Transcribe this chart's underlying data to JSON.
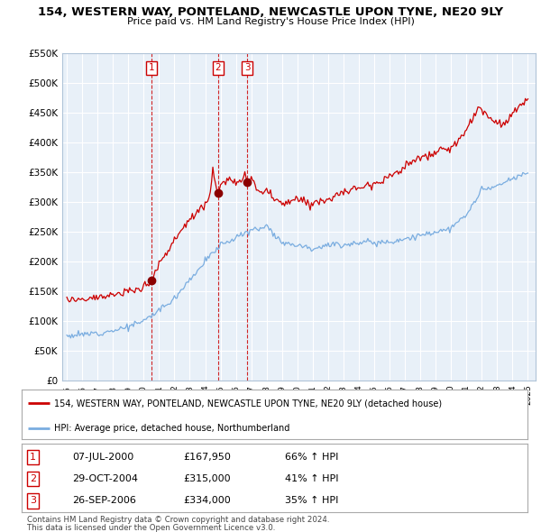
{
  "title1": "154, WESTERN WAY, PONTELAND, NEWCASTLE UPON TYNE, NE20 9LY",
  "title2": "Price paid vs. HM Land Registry's House Price Index (HPI)",
  "legend_line1": "154, WESTERN WAY, PONTELAND, NEWCASTLE UPON TYNE, NE20 9LY (detached house)",
  "legend_line2": "HPI: Average price, detached house, Northumberland",
  "footer1": "Contains HM Land Registry data © Crown copyright and database right 2024.",
  "footer2": "This data is licensed under the Open Government Licence v3.0.",
  "sales": [
    {
      "num": 1,
      "date": "07-JUL-2000",
      "price": "£167,950",
      "pct": "66% ↑ HPI"
    },
    {
      "num": 2,
      "date": "29-OCT-2004",
      "price": "£315,000",
      "pct": "41% ↑ HPI"
    },
    {
      "num": 3,
      "date": "26-SEP-2006",
      "price": "£334,000",
      "pct": "35% ↑ HPI"
    }
  ],
  "sale_years": [
    2000.52,
    2004.83,
    2006.74
  ],
  "sale_prices": [
    167950,
    315000,
    334000
  ],
  "vline_color": "#cc0000",
  "red_color": "#cc0000",
  "blue_color": "#7aade0",
  "chart_bg": "#e8f0f8",
  "ylim": [
    0,
    550000
  ],
  "xlim_start": 1994.7,
  "xlim_end": 2025.5,
  "yticks": [
    0,
    50000,
    100000,
    150000,
    200000,
    250000,
    300000,
    350000,
    400000,
    450000,
    500000,
    550000
  ],
  "xticks": [
    1995,
    1996,
    1997,
    1998,
    1999,
    2000,
    2001,
    2002,
    2003,
    2004,
    2005,
    2006,
    2007,
    2008,
    2009,
    2010,
    2011,
    2012,
    2013,
    2014,
    2015,
    2016,
    2017,
    2018,
    2019,
    2020,
    2021,
    2022,
    2023,
    2024,
    2025
  ],
  "bg_color": "#ffffff",
  "grid_color": "#ffffff"
}
